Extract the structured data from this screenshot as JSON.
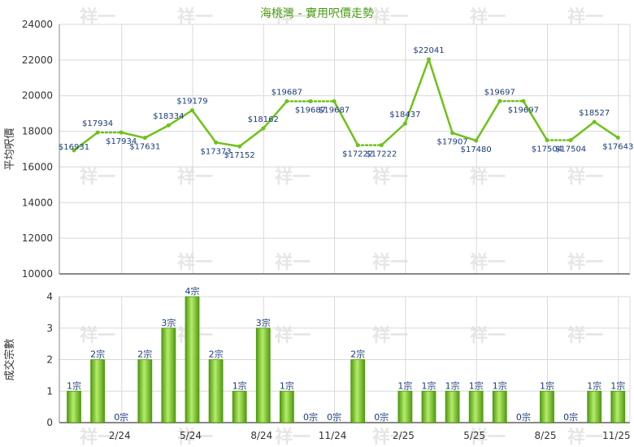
{
  "title": "海桃灣 - 實用呎價走勢",
  "watermark": "祥一",
  "colors": {
    "line": "#6ec21a",
    "bar_dark": "#4f9a10",
    "bar_light": "#b6ec6a",
    "grid": "#d9d9d9",
    "axis": "#888888",
    "title": "#4a9a12",
    "label": "#1a3a7a"
  },
  "chart_data": [
    {
      "type": "line",
      "ylabel": "平均呎價",
      "ylim": [
        10000,
        24000
      ],
      "yticks": [
        10000,
        12000,
        14000,
        16000,
        18000,
        20000,
        22000,
        24000
      ],
      "grid": true,
      "values": [
        16931,
        17934,
        17934,
        17631,
        18334,
        19179,
        17373,
        17152,
        18162,
        19687,
        19687,
        19687,
        17222,
        17222,
        18437,
        22041,
        17907,
        17480,
        19697,
        19697,
        17504,
        17504,
        18527,
        17643
      ],
      "labels": [
        "$16931",
        "$17934",
        "$17934",
        "$17631",
        "$18334",
        "$19179",
        "$17373",
        "$17152",
        "$18162",
        "$19687",
        "$19687",
        "$19687",
        "$17222",
        "$17222",
        "$18437",
        "$22041",
        "$17907",
        "$17480",
        "$19697",
        "$19697",
        "$17504",
        "$17504",
        "$18527",
        "$17643"
      ],
      "dotted_after_index": [
        1,
        9,
        10,
        12,
        18,
        20
      ]
    },
    {
      "type": "bar",
      "ylabel": "成交宗數",
      "ylim": [
        0,
        4
      ],
      "yticks": [
        0,
        1,
        2,
        3,
        4
      ],
      "grid": true,
      "values": [
        1,
        2,
        0,
        2,
        3,
        4,
        2,
        1,
        3,
        1,
        0,
        0,
        2,
        0,
        1,
        1,
        1,
        1,
        1,
        0,
        1,
        0,
        1,
        1
      ],
      "labels": [
        "1宗",
        "2宗",
        "0宗",
        "2宗",
        "3宗",
        "4宗",
        "2宗",
        "1宗",
        "3宗",
        "1宗",
        "0宗",
        "0宗",
        "2宗",
        "0宗",
        "1宗",
        "1宗",
        "1宗",
        "1宗",
        "1宗",
        "0宗",
        "1宗",
        "0宗",
        "1宗",
        "1宗"
      ],
      "xtick_labels": [
        "2/24",
        "5/24",
        "8/24",
        "11/24",
        "2/25",
        "5/25",
        "8/25",
        "11/25"
      ],
      "xtick_indices": [
        2,
        5,
        8,
        11,
        14,
        17,
        20,
        23
      ]
    }
  ]
}
